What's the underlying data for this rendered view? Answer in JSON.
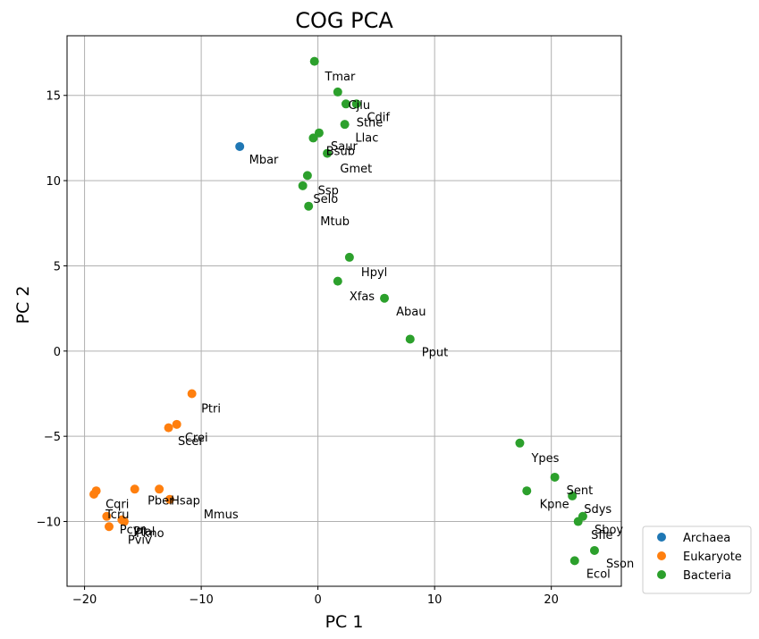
{
  "chart_data": {
    "type": "scatter",
    "title": "COG PCA",
    "xlabel": "PC 1",
    "ylabel": "PC 2",
    "xlim": [
      -21.5,
      26
    ],
    "ylim": [
      -13.8,
      18.5
    ],
    "xticks": [
      -20,
      -10,
      0,
      10,
      20
    ],
    "yticks": [
      -10,
      -5,
      0,
      5,
      10,
      15
    ],
    "xtick_labels": [
      "−20",
      "−10",
      "0",
      "10",
      "20"
    ],
    "ytick_labels": [
      "−10",
      "−5",
      "0",
      "5",
      "10",
      "15"
    ],
    "grid": true,
    "legend_position": "outside-bottom-right",
    "series": [
      {
        "name": "Archaea",
        "color": "#1f77b4",
        "points": [
          {
            "x": -6.7,
            "y": 12.0,
            "label": "Mbar",
            "lx": -5.9,
            "ly": 11.2
          }
        ]
      },
      {
        "name": "Eukaryote",
        "color": "#ff7f0e",
        "points": [
          {
            "x": -10.8,
            "y": -2.5,
            "label": "Ptri",
            "lx": -10.0,
            "ly": -3.4
          },
          {
            "x": -12.1,
            "y": -4.3,
            "label": "Crei",
            "lx": -11.4,
            "ly": -5.1
          },
          {
            "x": -12.8,
            "y": -4.5,
            "label": "Scer",
            "lx": -12.0,
            "ly": -5.3
          },
          {
            "x": -13.6,
            "y": -8.1,
            "label": "Pber",
            "lx": -14.6,
            "ly": -8.8
          },
          {
            "x": -12.7,
            "y": -8.7,
            "label": "Hsap",
            "lx": -12.6,
            "ly": -8.8
          },
          {
            "x": -15.7,
            "y": -8.1,
            "label": "Mmus",
            "lx": -9.8,
            "ly": -9.6
          },
          {
            "x": -19.0,
            "y": -8.2,
            "label": "Cqri",
            "lx": -18.2,
            "ly": -9.0
          },
          {
            "x": -19.2,
            "y": -8.4,
            "label": "Tcru",
            "lx": -18.2,
            "ly": -9.6
          },
          {
            "x": -18.1,
            "y": -9.7,
            "label": "Pcyn",
            "lx": -17.0,
            "ly": -10.5
          },
          {
            "x": -17.9,
            "y": -10.3,
            "label": "Pviv",
            "lx": -16.3,
            "ly": -11.1
          },
          {
            "x": -16.8,
            "y": -9.9,
            "label": "Pfal",
            "lx": -15.8,
            "ly": -10.6
          },
          {
            "x": -16.6,
            "y": -10.0,
            "label": "Pkno",
            "lx": -15.6,
            "ly": -10.7
          }
        ]
      },
      {
        "name": "Bacteria",
        "color": "#2ca02c",
        "points": [
          {
            "x": -0.3,
            "y": 17.0,
            "label": "Tmar",
            "lx": 0.6,
            "ly": 16.1
          },
          {
            "x": 1.7,
            "y": 15.2,
            "label": "Cjlu",
            "lx": 2.6,
            "ly": 14.4
          },
          {
            "x": 3.3,
            "y": 14.5,
            "label": "Cdif",
            "lx": 4.2,
            "ly": 13.7
          },
          {
            "x": 2.4,
            "y": 14.5,
            "label": "Sthe",
            "lx": 3.3,
            "ly": 13.4
          },
          {
            "x": 2.3,
            "y": 13.3,
            "label": "Llac",
            "lx": 3.2,
            "ly": 12.5
          },
          {
            "x": 0.1,
            "y": 12.8,
            "label": "Saur",
            "lx": 1.1,
            "ly": 12.0
          },
          {
            "x": -0.4,
            "y": 12.5,
            "label": "Bsub",
            "lx": 0.7,
            "ly": 11.7
          },
          {
            "x": 0.8,
            "y": 11.6,
            "label": "Gmet",
            "lx": 1.9,
            "ly": 10.7
          },
          {
            "x": -0.9,
            "y": 10.3,
            "label": "Ssp",
            "lx": 0.0,
            "ly": 9.4
          },
          {
            "x": -1.3,
            "y": 9.7,
            "label": "Selo",
            "lx": -0.4,
            "ly": 8.9
          },
          {
            "x": -0.8,
            "y": 8.5,
            "label": "Mtub",
            "lx": 0.2,
            "ly": 7.6
          },
          {
            "x": 2.7,
            "y": 5.5,
            "label": "Hpyl",
            "lx": 3.7,
            "ly": 4.6
          },
          {
            "x": 1.7,
            "y": 4.1,
            "label": "Xfas",
            "lx": 2.7,
            "ly": 3.2
          },
          {
            "x": 5.7,
            "y": 3.1,
            "label": "Abau",
            "lx": 6.7,
            "ly": 2.3
          },
          {
            "x": 7.9,
            "y": 0.7,
            "label": "Pput",
            "lx": 8.9,
            "ly": -0.1
          },
          {
            "x": 17.3,
            "y": -5.4,
            "label": "Ypes",
            "lx": 18.3,
            "ly": -6.3
          },
          {
            "x": 20.3,
            "y": -7.4,
            "label": "Sent",
            "lx": 21.3,
            "ly": -8.2
          },
          {
            "x": 17.9,
            "y": -8.2,
            "label": "Kpne",
            "lx": 19.0,
            "ly": -9.0
          },
          {
            "x": 21.8,
            "y": -8.5,
            "label": "Sdys",
            "lx": 22.8,
            "ly": -9.3
          },
          {
            "x": 22.7,
            "y": -9.7,
            "label": "Sboy",
            "lx": 23.7,
            "ly": -10.5
          },
          {
            "x": 22.3,
            "y": -10.0,
            "label": "Sfle",
            "lx": 23.4,
            "ly": -10.8
          },
          {
            "x": 23.7,
            "y": -11.7,
            "label": "Sson",
            "lx": 24.7,
            "ly": -12.5
          },
          {
            "x": 22.0,
            "y": -12.3,
            "label": "Ecol",
            "lx": 23.0,
            "ly": -13.1
          }
        ]
      }
    ]
  }
}
